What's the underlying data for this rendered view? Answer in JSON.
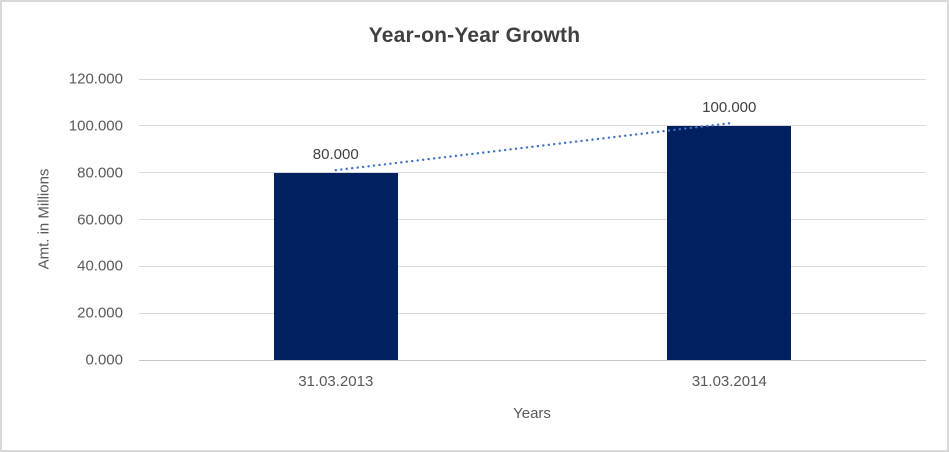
{
  "chart_data": {
    "type": "bar",
    "title": "Year-on-Year Growth",
    "categories": [
      "31.03.2013",
      "31.03.2014"
    ],
    "values": [
      80,
      100
    ],
    "data_labels": [
      "80.000",
      "100.000"
    ],
    "xlabel": "Years",
    "ylabel": "Amt. in Millions",
    "ylim": [
      0,
      120
    ],
    "ytick_step": 20,
    "ytick_labels": [
      "120.000",
      "100.000",
      "80.000",
      "60.000",
      "40.000",
      "20.000",
      "0.000"
    ],
    "grid": true,
    "legend": "none",
    "bar_color": "#002060",
    "trendline": {
      "type": "linear",
      "style": "dotted",
      "color": "#4472C4",
      "from_value": 80,
      "to_value": 100
    }
  },
  "colors": {
    "background": "#ffffff",
    "border": "#d9d9d9",
    "gridline": "#d9d9d9",
    "axis_line": "#c6c6c6",
    "title_text": "#404040",
    "label_text": "#595959"
  }
}
